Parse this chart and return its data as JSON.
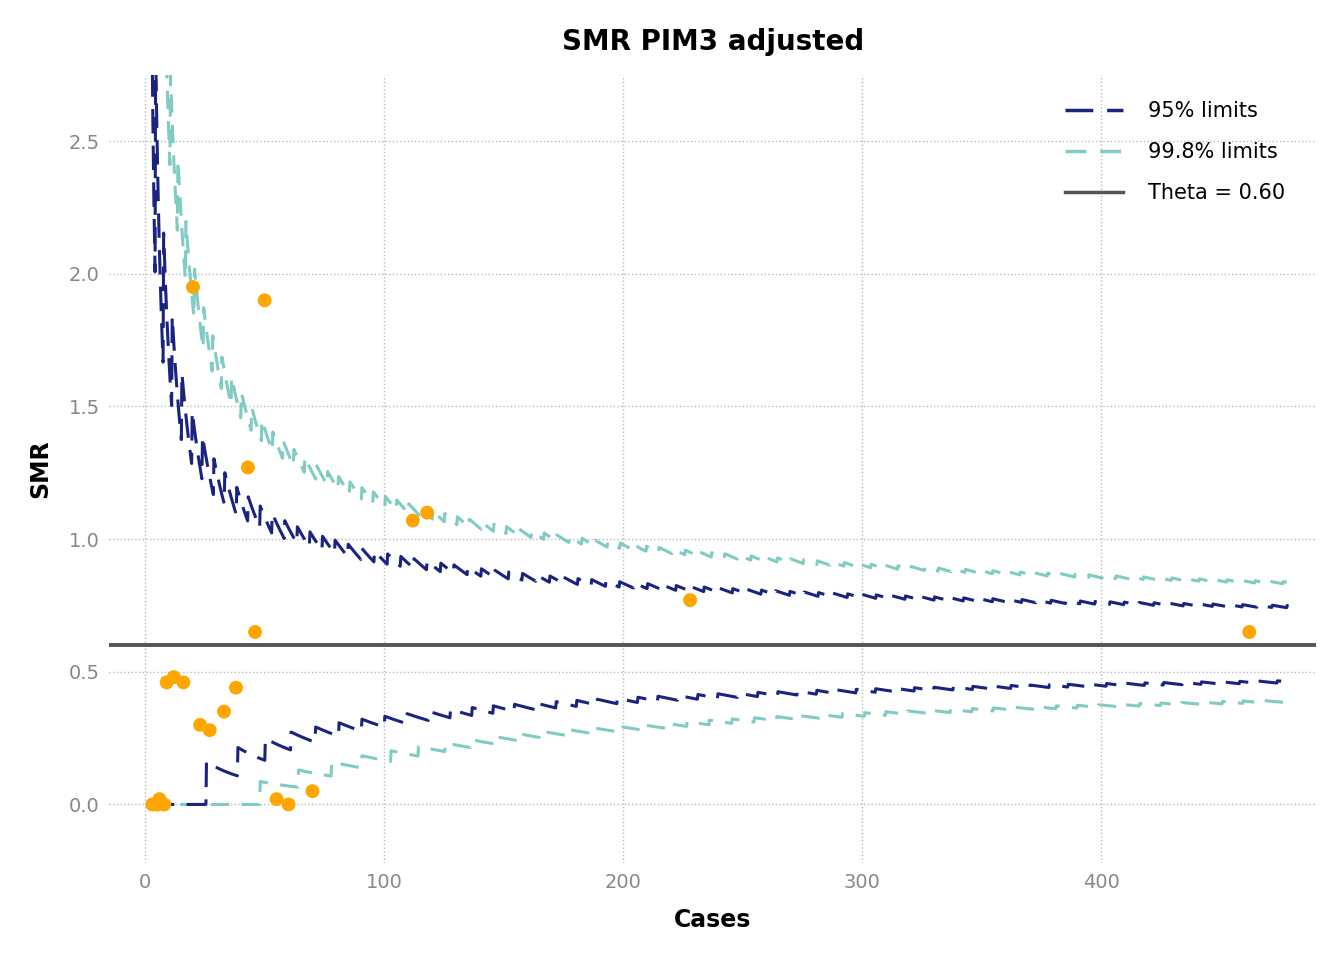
{
  "title": "SMR PIM3 adjusted",
  "xlabel": "Cases",
  "ylabel": "SMR",
  "theta": 0.6,
  "xlim": [
    -15,
    490
  ],
  "ylim": [
    -0.22,
    2.75
  ],
  "yticks": [
    0.0,
    0.5,
    1.0,
    1.5,
    2.0,
    2.5
  ],
  "xticks": [
    0,
    100,
    200,
    300,
    400
  ],
  "dot_color": "#FFA500",
  "dot_x": [
    3,
    5,
    6,
    8,
    9,
    12,
    16,
    20,
    23,
    27,
    33,
    38,
    43,
    46,
    50,
    55,
    60,
    70,
    112,
    118,
    228,
    462
  ],
  "dot_y": [
    0.0,
    0.0,
    0.02,
    0.0,
    0.46,
    0.48,
    0.46,
    1.95,
    0.3,
    0.28,
    0.35,
    0.44,
    1.27,
    0.65,
    1.9,
    0.02,
    0.0,
    0.05,
    1.07,
    1.1,
    0.77,
    0.65
  ],
  "color_95": "#1a237e",
  "color_998": "#80CBC4",
  "color_theta": "#555555",
  "background_color": "#ffffff",
  "grid_color": "#BBBBBB",
  "title_fontsize": 20,
  "label_fontsize": 17,
  "tick_fontsize": 14,
  "legend_fontsize": 15,
  "avg_expected_per_case": 0.08
}
